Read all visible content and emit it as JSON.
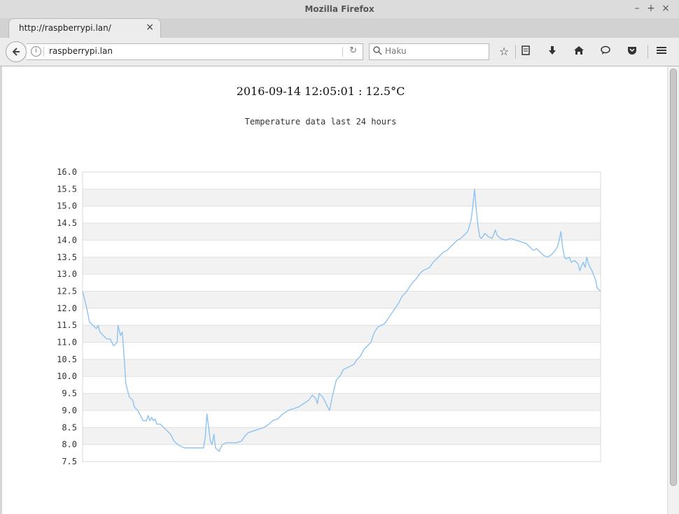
{
  "window": {
    "title": "Mozilla Firefox",
    "controls": [
      "–",
      "+",
      "×"
    ]
  },
  "tabs": [
    {
      "label": "http://raspberrypi.lan/",
      "close": "×"
    }
  ],
  "new_tab": "+",
  "navbar": {
    "back_icon": "back-arrow-icon",
    "url": "raspberrypi.lan",
    "search_placeholder": "Haku",
    "toolbar_icons": [
      "bookmark-star-icon",
      "reading-list-icon",
      "download-icon",
      "home-icon",
      "chat-bubble-icon",
      "pocket-icon",
      "menu-icon"
    ]
  },
  "page": {
    "heading": "2016-09-14 12:05:01 : 12.5°C",
    "subtitle": "Temperature data last 24 hours"
  },
  "colors": {
    "line": "#8ec3f0",
    "band": "#f2f2f2",
    "accent": "#3a3a3a"
  },
  "chart_data": {
    "type": "line",
    "title": "Temperature data last 24 hours",
    "xlabel": "",
    "ylabel": "",
    "ylim": [
      7.5,
      16.0
    ],
    "yticks": [
      "16.0",
      "15.5",
      "15.0",
      "14.5",
      "14.0",
      "13.5",
      "13.0",
      "12.5",
      "12.0",
      "11.5",
      "11.0",
      "10.5",
      "10.0",
      "9.5",
      "9.0",
      "8.5",
      "8.0",
      "7.5"
    ],
    "grid": "horizontal bands",
    "x_count": 301,
    "series": [
      {
        "color": "#8ec3f0",
        "points": [
          [
            0,
            12.5
          ],
          [
            2,
            12.1
          ],
          [
            4,
            11.6
          ],
          [
            6,
            11.5
          ],
          [
            8,
            11.4
          ],
          [
            9,
            11.5
          ],
          [
            10,
            11.3
          ],
          [
            12,
            11.2
          ],
          [
            14,
            11.1
          ],
          [
            16,
            11.1
          ],
          [
            17,
            11.0
          ],
          [
            18,
            10.9
          ],
          [
            20,
            11.0
          ],
          [
            22,
            11.2
          ],
          [
            20.5,
            11.5
          ],
          [
            23,
            11.3
          ],
          [
            24,
            10.6
          ],
          [
            25,
            9.8
          ],
          [
            26,
            9.6
          ],
          [
            27,
            9.4
          ],
          [
            29,
            9.3
          ],
          [
            30,
            9.1
          ],
          [
            32,
            9.0
          ],
          [
            34,
            8.8
          ],
          [
            35,
            8.7
          ],
          [
            37,
            8.7
          ],
          [
            38,
            8.85
          ],
          [
            39,
            8.7
          ],
          [
            40,
            8.8
          ],
          [
            41,
            8.7
          ],
          [
            42,
            8.75
          ],
          [
            43,
            8.6
          ],
          [
            45,
            8.6
          ],
          [
            47,
            8.5
          ],
          [
            49,
            8.4
          ],
          [
            51,
            8.3
          ],
          [
            53,
            8.1
          ],
          [
            55,
            8.0
          ],
          [
            57,
            7.95
          ],
          [
            59,
            7.9
          ],
          [
            62,
            7.9
          ],
          [
            66,
            7.9
          ],
          [
            70,
            7.9
          ],
          [
            71,
            8.2
          ],
          [
            72,
            8.9
          ],
          [
            73,
            8.5
          ],
          [
            74,
            8.1
          ],
          [
            75,
            8.0
          ],
          [
            76,
            8.3
          ],
          [
            77,
            7.9
          ],
          [
            79,
            7.8
          ],
          [
            81,
            8.0
          ],
          [
            83,
            8.05
          ],
          [
            86,
            8.05
          ],
          [
            89,
            8.05
          ],
          [
            92,
            8.1
          ],
          [
            94,
            8.25
          ],
          [
            96,
            8.35
          ],
          [
            99,
            8.4
          ],
          [
            102,
            8.45
          ],
          [
            105,
            8.5
          ],
          [
            108,
            8.6
          ],
          [
            110,
            8.7
          ],
          [
            113,
            8.75
          ],
          [
            116,
            8.9
          ],
          [
            119,
            9.0
          ],
          [
            122,
            9.05
          ],
          [
            125,
            9.1
          ],
          [
            128,
            9.2
          ],
          [
            131,
            9.3
          ],
          [
            133,
            9.45
          ],
          [
            135,
            9.35
          ],
          [
            136,
            9.2
          ],
          [
            137,
            9.5
          ],
          [
            139,
            9.4
          ],
          [
            141,
            9.2
          ],
          [
            143,
            9.0
          ],
          [
            145,
            9.5
          ],
          [
            147,
            9.9
          ],
          [
            149,
            10.0
          ],
          [
            151,
            10.2
          ],
          [
            153,
            10.25
          ],
          [
            155,
            10.3
          ],
          [
            157,
            10.35
          ],
          [
            159,
            10.5
          ],
          [
            161,
            10.6
          ],
          [
            163,
            10.8
          ],
          [
            165,
            10.9
          ],
          [
            167,
            11.0
          ],
          [
            169,
            11.3
          ],
          [
            171,
            11.45
          ],
          [
            173,
            11.5
          ],
          [
            175,
            11.55
          ],
          [
            177,
            11.7
          ],
          [
            179,
            11.85
          ],
          [
            181,
            12.0
          ],
          [
            183,
            12.15
          ],
          [
            185,
            12.35
          ],
          [
            187,
            12.45
          ],
          [
            189,
            12.6
          ],
          [
            191,
            12.75
          ],
          [
            193,
            12.85
          ],
          [
            195,
            13.0
          ],
          [
            197,
            13.1
          ],
          [
            199,
            13.15
          ],
          [
            201,
            13.2
          ],
          [
            203,
            13.35
          ],
          [
            205,
            13.45
          ],
          [
            207,
            13.55
          ],
          [
            209,
            13.65
          ],
          [
            211,
            13.7
          ],
          [
            213,
            13.8
          ],
          [
            215,
            13.9
          ],
          [
            217,
            14.0
          ],
          [
            219,
            14.05
          ],
          [
            221,
            14.15
          ],
          [
            223,
            14.25
          ],
          [
            224,
            14.4
          ],
          [
            225,
            14.6
          ],
          [
            226,
            15.0
          ],
          [
            227,
            15.5
          ],
          [
            228,
            14.9
          ],
          [
            229,
            14.4
          ],
          [
            230,
            14.1
          ],
          [
            231,
            14.05
          ],
          [
            233,
            14.2
          ],
          [
            235,
            14.1
          ],
          [
            237,
            14.05
          ],
          [
            238,
            14.15
          ],
          [
            239,
            14.3
          ],
          [
            240,
            14.15
          ],
          [
            242,
            14.05
          ],
          [
            245,
            14.0
          ],
          [
            248,
            14.05
          ],
          [
            251,
            14.0
          ],
          [
            254,
            13.95
          ],
          [
            257,
            13.9
          ],
          [
            259,
            13.8
          ],
          [
            261,
            13.7
          ],
          [
            263,
            13.75
          ],
          [
            265,
            13.65
          ],
          [
            267,
            13.55
          ],
          [
            269,
            13.5
          ],
          [
            271,
            13.55
          ],
          [
            273,
            13.65
          ],
          [
            275,
            13.8
          ],
          [
            276,
            14.0
          ],
          [
            277,
            14.25
          ],
          [
            278,
            13.8
          ],
          [
            279,
            13.5
          ],
          [
            280,
            13.45
          ],
          [
            282,
            13.5
          ],
          [
            283,
            13.35
          ],
          [
            285,
            13.4
          ],
          [
            287,
            13.3
          ],
          [
            288,
            13.1
          ],
          [
            289,
            13.25
          ],
          [
            290,
            13.35
          ],
          [
            291,
            13.2
          ],
          [
            292,
            13.5
          ],
          [
            293,
            13.3
          ],
          [
            295,
            13.1
          ],
          [
            297,
            12.85
          ],
          [
            298,
            12.6
          ],
          [
            299,
            12.55
          ],
          [
            300,
            12.5
          ]
        ]
      }
    ]
  }
}
